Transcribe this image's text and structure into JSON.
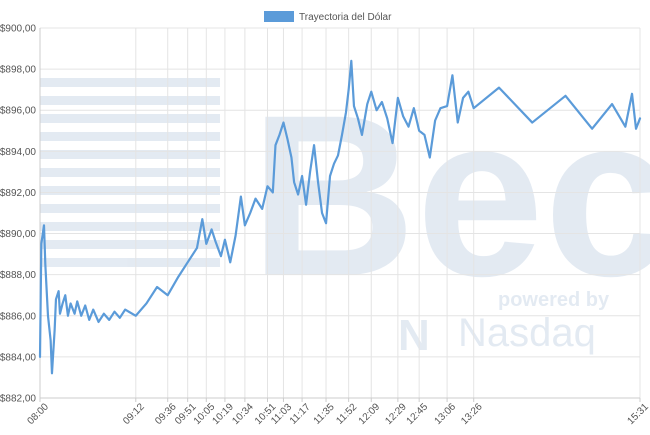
{
  "chart_data": {
    "type": "line",
    "title": "",
    "xlabel": "",
    "ylabel": "",
    "ylim": [
      882,
      900
    ],
    "y_ticks": [
      882,
      884,
      886,
      888,
      890,
      892,
      894,
      896,
      898,
      900
    ],
    "y_tick_labels": [
      "$882,00",
      "$884,00",
      "$886,00",
      "$888,00",
      "$890,00",
      "$892,00",
      "$894,00",
      "$896,00",
      "$898,00",
      "$900,00"
    ],
    "x_range": [
      "08:00",
      "15:31"
    ],
    "x_ticks": [
      "08:00",
      "09:12",
      "09:36",
      "09:51",
      "10:05",
      "10:19",
      "10:34",
      "10:51",
      "11:03",
      "11:17",
      "11:35",
      "11:52",
      "12:09",
      "12:29",
      "12:45",
      "13:06",
      "13:26",
      "15:31"
    ],
    "grid": true,
    "legend_position": "top-center",
    "series": [
      {
        "name": "Trayectoria del Dólar",
        "color": "#5b9bd9",
        "points": [
          [
            "08:00",
            884.0
          ],
          [
            "08:01",
            889.5
          ],
          [
            "08:03",
            890.4
          ],
          [
            "08:04",
            888.5
          ],
          [
            "08:06",
            886.0
          ],
          [
            "08:08",
            884.8
          ],
          [
            "08:09",
            883.2
          ],
          [
            "08:11",
            885.3
          ],
          [
            "08:12",
            886.8
          ],
          [
            "08:14",
            887.2
          ],
          [
            "08:15",
            886.1
          ],
          [
            "08:17",
            886.6
          ],
          [
            "08:19",
            887.0
          ],
          [
            "08:21",
            886.0
          ],
          [
            "08:23",
            886.6
          ],
          [
            "08:26",
            886.1
          ],
          [
            "08:28",
            886.7
          ],
          [
            "08:31",
            886.0
          ],
          [
            "08:34",
            886.5
          ],
          [
            "08:37",
            885.8
          ],
          [
            "08:40",
            886.3
          ],
          [
            "08:44",
            885.7
          ],
          [
            "08:48",
            886.1
          ],
          [
            "08:52",
            885.8
          ],
          [
            "08:56",
            886.2
          ],
          [
            "09:00",
            885.9
          ],
          [
            "09:04",
            886.3
          ],
          [
            "09:12",
            886.0
          ],
          [
            "09:20",
            886.6
          ],
          [
            "09:28",
            887.4
          ],
          [
            "09:36",
            887.0
          ],
          [
            "09:44",
            887.9
          ],
          [
            "09:51",
            888.6
          ],
          [
            "09:58",
            889.3
          ],
          [
            "10:02",
            890.7
          ],
          [
            "10:05",
            889.5
          ],
          [
            "10:09",
            890.2
          ],
          [
            "10:12",
            889.6
          ],
          [
            "10:16",
            888.9
          ],
          [
            "10:19",
            889.7
          ],
          [
            "10:23",
            888.6
          ],
          [
            "10:27",
            889.9
          ],
          [
            "10:31",
            891.8
          ],
          [
            "10:34",
            890.4
          ],
          [
            "10:38",
            891.0
          ],
          [
            "10:42",
            891.7
          ],
          [
            "10:47",
            891.2
          ],
          [
            "10:51",
            892.3
          ],
          [
            "10:55",
            892.0
          ],
          [
            "10:57",
            894.3
          ],
          [
            "11:00",
            894.8
          ],
          [
            "11:03",
            895.4
          ],
          [
            "11:06",
            894.6
          ],
          [
            "11:09",
            893.7
          ],
          [
            "11:11",
            892.5
          ],
          [
            "11:14",
            891.9
          ],
          [
            "11:17",
            892.8
          ],
          [
            "11:20",
            891.4
          ],
          [
            "11:23",
            893.0
          ],
          [
            "11:26",
            894.3
          ],
          [
            "11:29",
            892.5
          ],
          [
            "11:32",
            891.0
          ],
          [
            "11:35",
            890.5
          ],
          [
            "11:38",
            892.8
          ],
          [
            "11:41",
            893.4
          ],
          [
            "11:44",
            893.8
          ],
          [
            "11:47",
            894.8
          ],
          [
            "11:50",
            895.9
          ],
          [
            "11:52",
            897.0
          ],
          [
            "11:54",
            898.4
          ],
          [
            "11:56",
            896.2
          ],
          [
            "11:59",
            895.6
          ],
          [
            "12:02",
            894.8
          ],
          [
            "12:06",
            896.3
          ],
          [
            "12:09",
            896.9
          ],
          [
            "12:13",
            896.0
          ],
          [
            "12:17",
            896.4
          ],
          [
            "12:21",
            895.6
          ],
          [
            "12:25",
            894.4
          ],
          [
            "12:29",
            896.6
          ],
          [
            "12:33",
            895.7
          ],
          [
            "12:37",
            895.2
          ],
          [
            "12:41",
            896.1
          ],
          [
            "12:45",
            895.0
          ],
          [
            "12:49",
            894.8
          ],
          [
            "12:53",
            893.7
          ],
          [
            "12:57",
            895.5
          ],
          [
            "13:01",
            896.1
          ],
          [
            "13:06",
            896.2
          ],
          [
            "13:10",
            897.7
          ],
          [
            "13:14",
            895.4
          ],
          [
            "13:18",
            896.6
          ],
          [
            "13:22",
            896.9
          ],
          [
            "13:26",
            896.1
          ],
          [
            "13:45",
            897.1
          ],
          [
            "14:10",
            895.4
          ],
          [
            "14:35",
            896.7
          ],
          [
            "14:55",
            895.1
          ],
          [
            "15:10",
            896.3
          ],
          [
            "15:20",
            895.2
          ],
          [
            "15:25",
            896.8
          ],
          [
            "15:28",
            895.1
          ],
          [
            "15:31",
            895.6
          ]
        ]
      }
    ]
  },
  "watermark": {
    "logo_text": "Bec",
    "powered_by": "powered by",
    "brand": "Nasdaq"
  }
}
